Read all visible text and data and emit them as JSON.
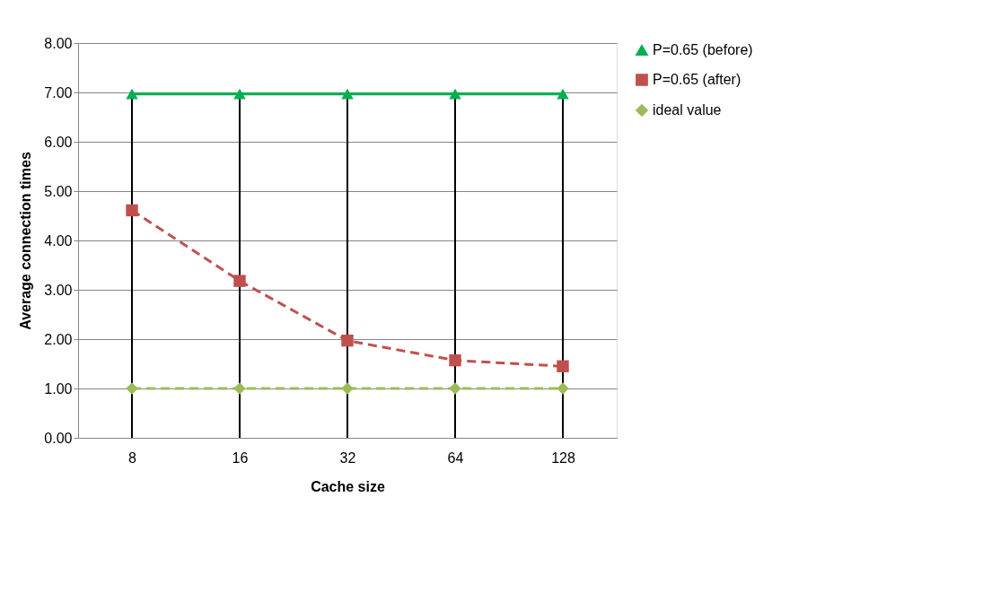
{
  "chart_data": {
    "type": "line",
    "xlabel": "Cache size",
    "ylabel": "Average connection times",
    "categories": [
      "8",
      "16",
      "32",
      "64",
      "128"
    ],
    "series": [
      {
        "name": "P=0.65 (before)",
        "color": "#00b050",
        "values": [
          6.97,
          6.97,
          6.97,
          6.97,
          6.97
        ],
        "marker": "triangle",
        "line_style": "solid"
      },
      {
        "name": "P=0.65  (after)",
        "color": "#c0504d",
        "values": [
          4.61,
          3.18,
          1.97,
          1.57,
          1.45
        ],
        "marker": "square",
        "line_style": "dashed"
      },
      {
        "name": "ideal value",
        "color": "#9bbb59",
        "values": [
          1.0,
          1.0,
          1.0,
          1.0,
          1.0
        ],
        "marker": "diamond",
        "line_style": "dashed"
      }
    ],
    "ylim": [
      0,
      8
    ],
    "yticks": [
      {
        "value": 0,
        "label": "0.00"
      },
      {
        "value": 1,
        "label": "1.00"
      },
      {
        "value": 2,
        "label": "2.00"
      },
      {
        "value": 3,
        "label": "3.00"
      },
      {
        "value": 4,
        "label": "4.00"
      },
      {
        "value": 5,
        "label": "5.00"
      },
      {
        "value": 6,
        "label": "6.00"
      },
      {
        "value": 7,
        "label": "7.00"
      },
      {
        "value": 8,
        "label": "8.00"
      }
    ],
    "ref_lines": [
      {
        "axis": "x",
        "value": "8"
      },
      {
        "axis": "x",
        "value": "16"
      },
      {
        "axis": "x",
        "value": "32"
      },
      {
        "axis": "x",
        "value": "64"
      },
      {
        "axis": "x",
        "value": "128"
      }
    ],
    "grid": "y",
    "legend": "right"
  }
}
